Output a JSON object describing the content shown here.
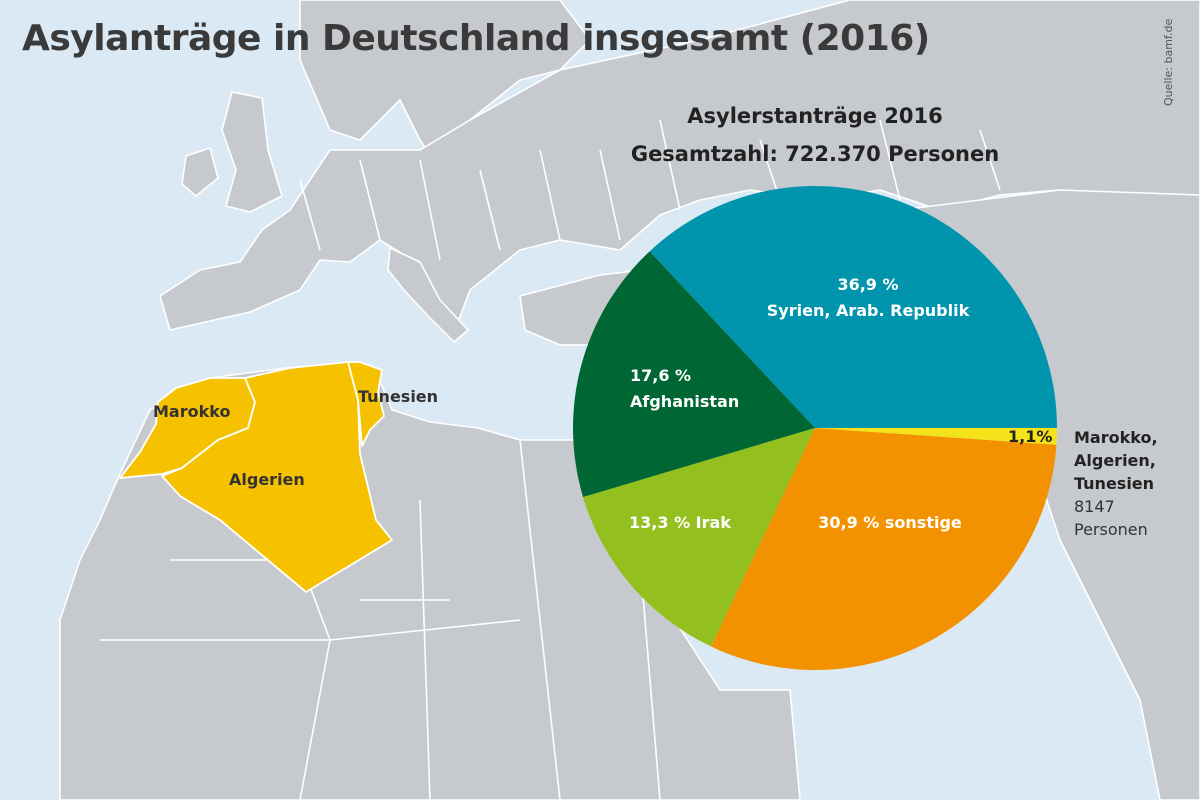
{
  "header": {
    "title": "Asylanträge in Deutschland insgesamt (2016)",
    "source": "Quelle: bamf.de"
  },
  "map": {
    "countries": [
      {
        "name": "Marokko",
        "highlight": true
      },
      {
        "name": "Algerien",
        "highlight": true
      },
      {
        "name": "Tunesien",
        "highlight": true
      }
    ],
    "colors": {
      "water": "#dbe9f4",
      "land": "#c6c9cd",
      "border": "#ffffff",
      "highlight": "#f6c200"
    }
  },
  "chart_data": {
    "type": "pie",
    "title": "Asylerstanträge 2016",
    "subtitle": "Gesamtzahl: 722.370 Personen",
    "slices": [
      {
        "name": "Syrien, Arab. Republik",
        "value": 36.9,
        "value_label": "36,9 %",
        "color": "#0095ad"
      },
      {
        "name": "Marokko, Algerien, Tunesien",
        "value": 1.1,
        "value_label": "1,1%",
        "color": "#f4e21a"
      },
      {
        "name": "sonstige",
        "value": 30.9,
        "value_label": "30,9 %",
        "color": "#f39200"
      },
      {
        "name": "Irak",
        "value": 13.3,
        "value_label": "13,3 %",
        "color": "#93c01f"
      },
      {
        "name": "Afghanistan",
        "value": 17.6,
        "value_label": "17,6 %",
        "color": "#006734"
      }
    ],
    "labels": {
      "syria_pct": "36,9 %",
      "syria_name": "Syrien, Arab. Republik",
      "afg_pct": "17,6 %",
      "afg_name": "Afghanistan",
      "irak": "13,3 % Irak",
      "sonstige": "30,9 % sonstige",
      "maghreb_pct": "1,1%"
    },
    "annotation": {
      "countries_line1": "Marokko,",
      "countries_line2": "Algerien,",
      "countries_line3": "Tunesien",
      "count": "8147",
      "unit": "Personen"
    }
  }
}
